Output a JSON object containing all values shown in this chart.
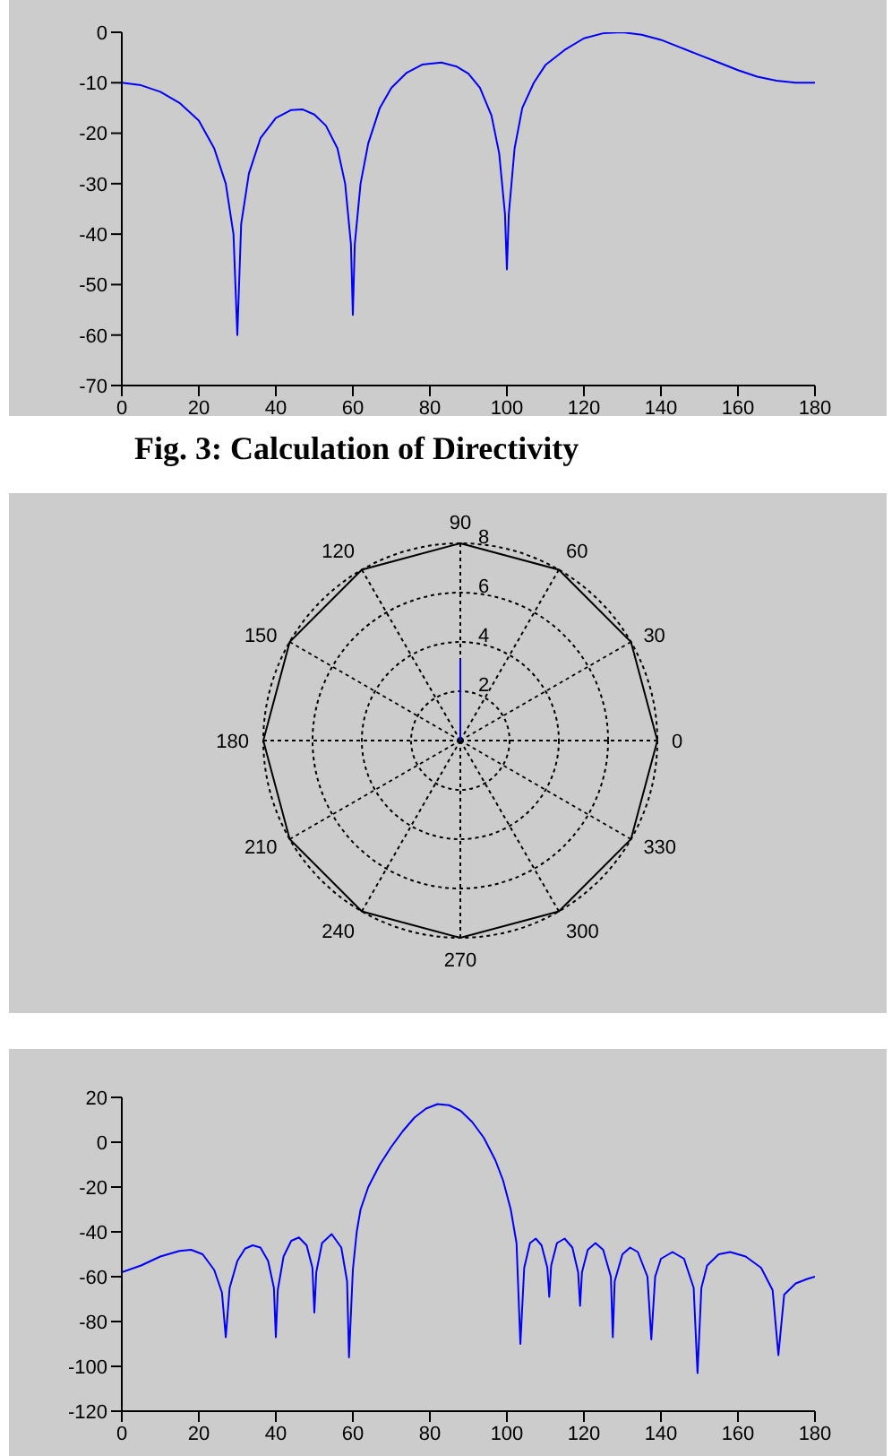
{
  "chart_data": [
    {
      "type": "line",
      "xlim": [
        0,
        180
      ],
      "xticks": [
        0,
        20,
        40,
        60,
        80,
        100,
        120,
        140,
        160,
        180
      ],
      "ylim": [
        -70,
        0
      ],
      "yticks": [
        -70,
        -60,
        -50,
        -40,
        -30,
        -20,
        -10,
        0
      ],
      "grid": false,
      "annotations": [
        "Fig. 3: Calculation of Directivity"
      ],
      "series": [
        {
          "color": "#0000ff",
          "x": [
            0,
            5,
            10,
            15,
            20,
            24,
            27,
            29,
            30,
            31,
            33,
            36,
            40,
            44,
            47,
            50,
            53,
            56,
            58,
            59.5,
            60,
            60.5,
            62,
            64,
            67,
            70,
            74,
            78,
            83,
            87,
            90,
            93,
            96,
            98,
            99.5,
            100,
            100.5,
            102,
            104,
            107,
            110,
            115,
            120,
            125,
            130,
            135,
            140,
            145,
            150,
            155,
            160,
            165,
            170,
            175,
            180
          ],
          "values": [
            -10,
            -10.5,
            -11.8,
            -14,
            -17.5,
            -23,
            -30,
            -40,
            -60,
            -38,
            -28,
            -21,
            -17,
            -15.4,
            -15.3,
            -16.3,
            -18.5,
            -23,
            -30,
            -42,
            -56,
            -42,
            -30,
            -22,
            -15,
            -11,
            -8,
            -6.4,
            -6,
            -6.8,
            -8.2,
            -11,
            -16.5,
            -24,
            -36,
            -47,
            -36,
            -23,
            -15,
            -10,
            -6.5,
            -3.5,
            -1.2,
            -0.2,
            0,
            -0.5,
            -1.5,
            -3,
            -4.5,
            -6,
            -7.5,
            -8.8,
            -9.6,
            -10,
            -10
          ]
        }
      ]
    },
    {
      "type": "radar",
      "ylim": [
        0,
        8
      ],
      "yticks": [
        2,
        4,
        6,
        8
      ],
      "grid": true,
      "categories": [
        "90",
        "60",
        "30",
        "0",
        "330",
        "300",
        "270",
        "240",
        "210",
        "180",
        "150",
        "120"
      ],
      "series": [
        {
          "color": "#0000ff",
          "values": [
            3.3,
            0,
            0,
            0,
            0,
            0,
            0,
            0,
            0,
            0,
            0,
            0
          ]
        }
      ]
    },
    {
      "type": "line",
      "xlim": [
        0,
        180
      ],
      "xticks": [
        0,
        20,
        40,
        60,
        80,
        100,
        120,
        140,
        160,
        180
      ],
      "ylim": [
        -120,
        20
      ],
      "yticks": [
        -120,
        -100,
        -80,
        -60,
        -40,
        -20,
        0,
        20
      ],
      "grid": false,
      "series": [
        {
          "color": "#0000ff",
          "x": [
            0,
            5,
            10,
            15,
            18,
            21,
            24,
            26,
            27,
            28,
            30,
            32,
            34,
            36,
            38,
            39.5,
            40,
            40.5,
            42,
            44,
            46,
            48,
            49.5,
            50,
            50.5,
            52,
            54.5,
            57,
            58.5,
            59,
            60,
            61,
            62,
            64,
            67,
            70,
            73,
            76,
            79,
            82,
            85,
            88,
            91,
            94,
            97,
            99,
            101,
            102.5,
            103.5,
            104.5,
            106,
            107.5,
            109,
            110.5,
            111,
            111.5,
            113,
            115,
            117,
            118.5,
            119,
            119.5,
            121,
            123,
            125,
            127,
            127.5,
            128,
            130,
            132,
            134,
            136.5,
            137.5,
            138.5,
            140,
            143,
            146,
            148.5,
            149.5,
            150.5,
            152,
            155,
            158,
            162,
            166,
            169,
            170.5,
            172,
            175,
            178,
            180
          ],
          "values": [
            -58,
            -55,
            -51,
            -48.5,
            -48,
            -50,
            -57,
            -67,
            -87,
            -65,
            -53,
            -47.5,
            -46,
            -47,
            -53,
            -65,
            -87,
            -66,
            -51,
            -44,
            -42.5,
            -46,
            -56,
            -76,
            -58,
            -45,
            -41,
            -47,
            -62,
            -96,
            -57,
            -40,
            -30,
            -20,
            -10,
            -2,
            5,
            11,
            15,
            17,
            16.5,
            14,
            9,
            2,
            -8,
            -17,
            -30,
            -45,
            -90,
            -56,
            -45,
            -43,
            -46,
            -56,
            -69,
            -55,
            -45,
            -43,
            -47,
            -58,
            -73,
            -58,
            -48,
            -45,
            -48,
            -60,
            -87,
            -62,
            -50,
            -47,
            -49,
            -60,
            -88,
            -60,
            -52,
            -49,
            -52,
            -65,
            -103,
            -65,
            -55,
            -50,
            -49,
            -51,
            -56,
            -66,
            -95,
            -68,
            -63,
            -61,
            -60
          ]
        }
      ]
    }
  ]
}
